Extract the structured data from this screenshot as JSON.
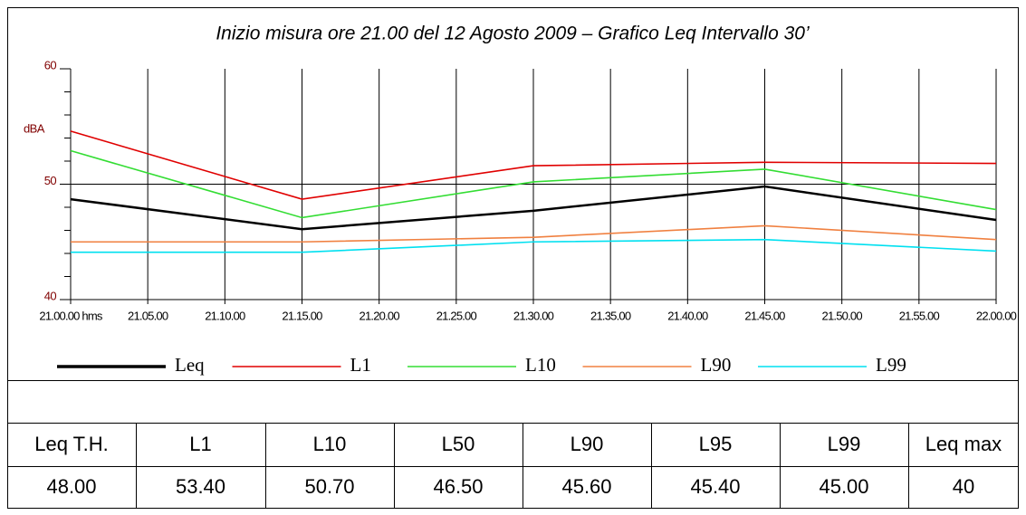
{
  "chart_data": {
    "type": "line",
    "title": "Inizio misura ore 21.00 del 12 Agosto 2009 –  Grafico Leq Intervallo 30’",
    "y_label": "dBA",
    "x": [
      0,
      15,
      30,
      45,
      60
    ],
    "xlim": [
      0,
      60
    ],
    "xticks": [
      {
        "value": 0,
        "label": "21.00.00 hms"
      },
      {
        "value": 5,
        "label": "21.05.00"
      },
      {
        "value": 10,
        "label": "21.10.00"
      },
      {
        "value": 15,
        "label": "21.15.00"
      },
      {
        "value": 20,
        "label": "21.20.00"
      },
      {
        "value": 25,
        "label": "21.25.00"
      },
      {
        "value": 30,
        "label": "21.30.00"
      },
      {
        "value": 35,
        "label": "21.35.00"
      },
      {
        "value": 40,
        "label": "21.40.00"
      },
      {
        "value": 45,
        "label": "21.45.00"
      },
      {
        "value": 50,
        "label": "21.50.00"
      },
      {
        "value": 55,
        "label": "21.55.00"
      },
      {
        "value": 60,
        "label": "22.00.00"
      }
    ],
    "ylim": [
      40,
      60
    ],
    "yticks": [
      40,
      50,
      60
    ],
    "yminor_ticks": [
      42,
      44,
      46,
      48,
      52,
      54,
      56,
      58
    ],
    "grid": true,
    "series": [
      {
        "name": "Leq",
        "color": "#000000",
        "values": [
          48.7,
          46.1,
          47.7,
          49.8,
          46.9
        ]
      },
      {
        "name": "L1",
        "color": "#e00000",
        "values": [
          54.6,
          48.7,
          51.6,
          51.9,
          51.8
        ]
      },
      {
        "name": "L10",
        "color": "#33dd33",
        "values": [
          52.9,
          47.1,
          50.2,
          51.3,
          47.8
        ]
      },
      {
        "name": "L90",
        "color": "#f08040",
        "values": [
          45.0,
          45.0,
          45.4,
          46.4,
          45.2
        ]
      },
      {
        "name": "L99",
        "color": "#00e0f0",
        "values": [
          44.1,
          44.1,
          45.0,
          45.2,
          44.2
        ]
      }
    ]
  },
  "table": {
    "headers": [
      "Leq T.H.",
      "L1",
      "L10",
      "L50",
      "L90",
      "L95",
      "L99",
      "Leq max"
    ],
    "rows": [
      [
        "48.00",
        "53.40",
        "50.70",
        "46.50",
        "45.60",
        "45.40",
        "45.00",
        "40"
      ]
    ]
  }
}
